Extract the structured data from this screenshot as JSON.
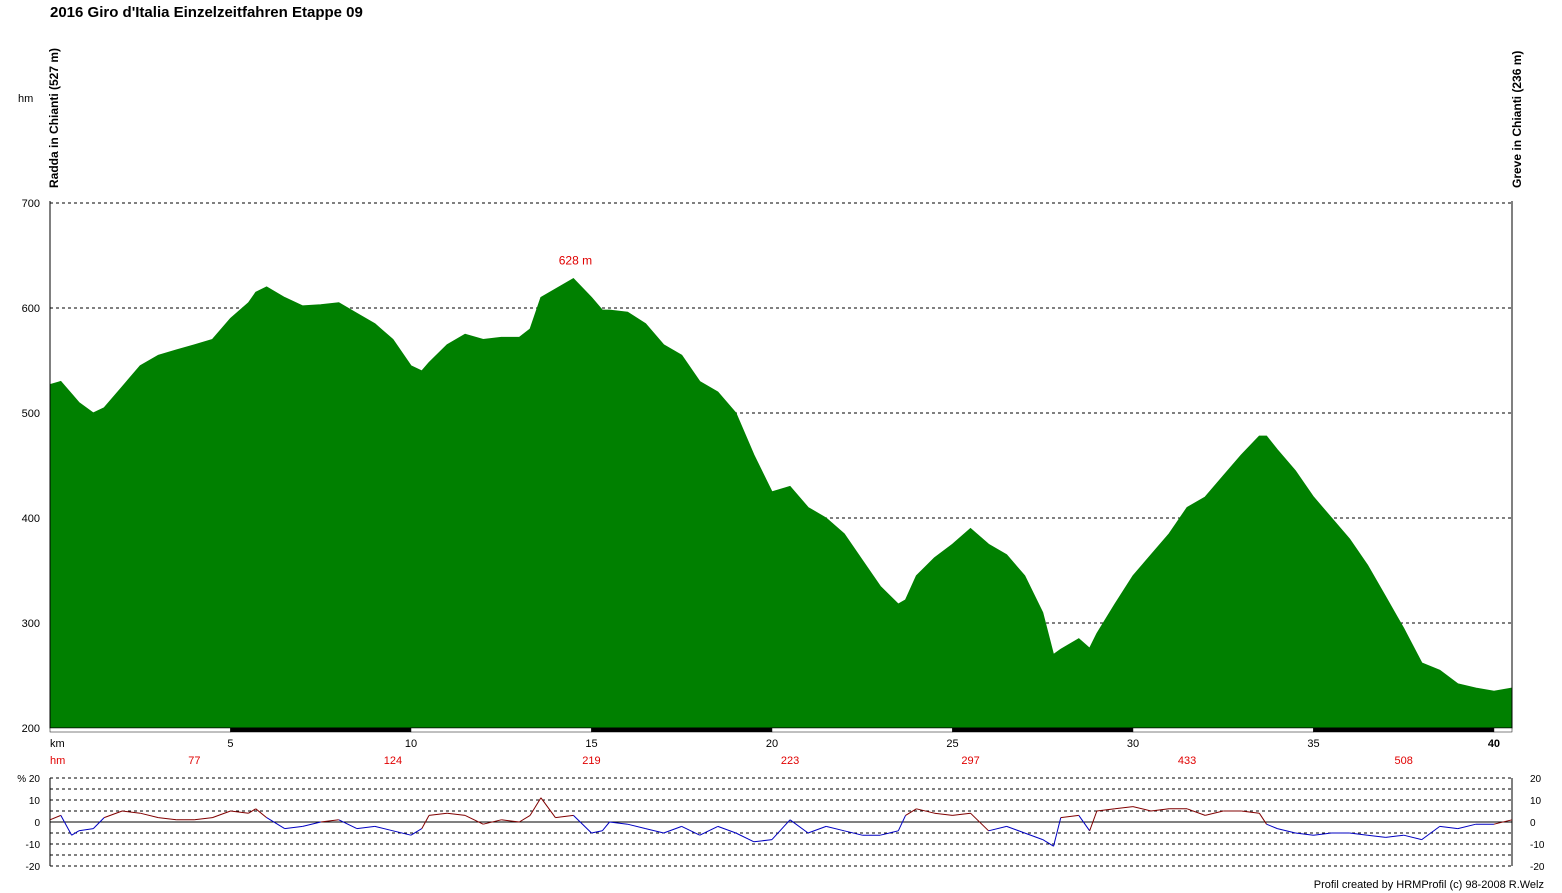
{
  "page": {
    "title": "2016 Giro d'Italia Einzelzeitfahren Etappe 09",
    "credit": "Profil created by HRMProfil (c) 98-2008 R.Welz"
  },
  "chart_data": [
    {
      "type": "area",
      "title": "2016 Giro d'Italia Einzelzeitfahren Etappe 09",
      "ylabel": "hm",
      "xlabel": "km",
      "xlim": [
        0,
        40.5
      ],
      "ylim": [
        200,
        700
      ],
      "y_ticks": [
        200,
        300,
        400,
        500,
        600,
        700
      ],
      "x_ticks": [
        "5",
        "10",
        "15",
        "20",
        "25",
        "30",
        "35",
        "40"
      ],
      "x_tick_values": [
        5,
        10,
        15,
        20,
        25,
        30,
        35,
        40
      ],
      "fill_color": "#008000",
      "grid": "dashed horizontal",
      "start_label": "Radda in Chianti (527 m)",
      "end_label": "Greve in Chianti (236 m)",
      "peak_annotation": {
        "km": 14.5,
        "elevation": 628,
        "label": "628 m"
      },
      "cumulative_climb_label": "hm",
      "cumulative_climb": [
        {
          "km": 4,
          "value": "77"
        },
        {
          "km": 9.5,
          "value": "124"
        },
        {
          "km": 15,
          "value": "219"
        },
        {
          "km": 20.5,
          "value": "223"
        },
        {
          "km": 25.5,
          "value": "297"
        },
        {
          "km": 31.5,
          "value": "433"
        },
        {
          "km": 37.5,
          "value": "508"
        }
      ],
      "x": [
        0,
        0.3,
        0.6,
        0.8,
        1.2,
        1.5,
        2,
        2.5,
        3,
        3.5,
        4,
        4.5,
        5,
        5.5,
        5.7,
        6,
        6.5,
        7,
        7.5,
        8,
        8.5,
        9,
        9.5,
        10,
        10.3,
        10.5,
        11,
        11.5,
        12,
        12.5,
        13,
        13.3,
        13.6,
        14,
        14.5,
        15,
        15.3,
        15.5,
        16,
        16.5,
        17,
        17.5,
        18,
        18.5,
        19,
        19.5,
        20,
        20.5,
        21,
        21.5,
        22,
        22.5,
        23,
        23.5,
        23.7,
        24,
        24.5,
        25,
        25.5,
        26,
        26.5,
        27,
        27.5,
        27.8,
        28,
        28.5,
        28.8,
        29,
        29.5,
        30,
        30.5,
        31,
        31.5,
        32,
        32.5,
        33,
        33.5,
        33.7,
        34,
        34.5,
        35,
        35.5,
        36,
        36.5,
        37,
        37.5,
        38,
        38.5,
        39,
        39.5,
        40,
        40.5
      ],
      "elevation": [
        527,
        530,
        518,
        510,
        500,
        505,
        525,
        545,
        555,
        560,
        565,
        570,
        590,
        605,
        615,
        620,
        610,
        602,
        603,
        605,
        595,
        585,
        570,
        545,
        540,
        548,
        565,
        575,
        570,
        572,
        572,
        580,
        610,
        618,
        628,
        610,
        598,
        598,
        596,
        585,
        565,
        555,
        530,
        520,
        500,
        460,
        425,
        430,
        410,
        400,
        385,
        360,
        335,
        318,
        322,
        345,
        362,
        375,
        390,
        375,
        365,
        345,
        310,
        270,
        275,
        285,
        276,
        290,
        318,
        345,
        365,
        385,
        410,
        420,
        440,
        460,
        478,
        478,
        465,
        445,
        420,
        400,
        380,
        355,
        325,
        295,
        262,
        255,
        242,
        238,
        235,
        238
      ],
      "line_color": "#008000"
    },
    {
      "type": "line",
      "ylabel": "%",
      "ylim": [
        -20,
        20
      ],
      "y_ticks": [
        -20,
        -10,
        0,
        10,
        20
      ],
      "xlim": [
        0,
        40.5
      ],
      "positive_color": "#800000",
      "negative_color": "#0000c0",
      "x": [
        0,
        0.3,
        0.6,
        0.8,
        1.2,
        1.5,
        2,
        2.5,
        3,
        3.5,
        4,
        4.5,
        5,
        5.5,
        5.7,
        6,
        6.5,
        7,
        7.5,
        8,
        8.5,
        9,
        9.5,
        10,
        10.3,
        10.5,
        11,
        11.5,
        12,
        12.5,
        13,
        13.3,
        13.6,
        14,
        14.5,
        15,
        15.3,
        15.5,
        16,
        16.5,
        17,
        17.5,
        18,
        18.5,
        19,
        19.5,
        20,
        20.5,
        21,
        21.5,
        22,
        22.5,
        23,
        23.5,
        23.7,
        24,
        24.5,
        25,
        25.5,
        26,
        26.5,
        27,
        27.5,
        27.8,
        28,
        28.5,
        28.8,
        29,
        29.5,
        30,
        30.5,
        31,
        31.5,
        32,
        32.5,
        33,
        33.5,
        33.7,
        34,
        34.5,
        35,
        35.5,
        36,
        36.5,
        37,
        37.5,
        38,
        38.5,
        39,
        39.5,
        40,
        40.5
      ],
      "gradient": [
        1,
        3,
        -6,
        -4,
        -3,
        2,
        5,
        4,
        2,
        1,
        1,
        2,
        5,
        4,
        6,
        2,
        -3,
        -2,
        0,
        1,
        -3,
        -2,
        -4,
        -6,
        -3,
        3,
        4,
        3,
        -1,
        1,
        0,
        3,
        11,
        2,
        3,
        -5,
        -4,
        0,
        -1,
        -3,
        -5,
        -2,
        -6,
        -2,
        -5,
        -9,
        -8,
        1,
        -5,
        -2,
        -4,
        -6,
        -6,
        -4,
        3,
        6,
        4,
        3,
        4,
        -4,
        -2,
        -5,
        -8,
        -11,
        2,
        3,
        -4,
        5,
        6,
        7,
        5,
        6,
        6,
        3,
        5,
        5,
        4,
        -1,
        -3,
        -5,
        -6,
        -5,
        -5,
        -6,
        -7,
        -6,
        -8,
        -2,
        -3,
        -1,
        -1,
        1
      ]
    }
  ]
}
